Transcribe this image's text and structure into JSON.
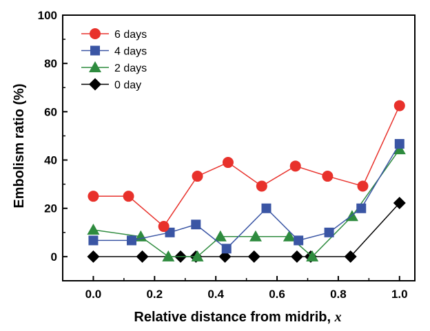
{
  "chart_data": {
    "type": "line",
    "title": "",
    "xlabel": "Relative distance from midrib, ",
    "xlabel_var": "x",
    "ylabel": "Embolism ratio (%)",
    "xlim": [
      -0.1,
      1.05
    ],
    "ylim": [
      -10,
      100
    ],
    "x_ticks": [
      0.0,
      0.2,
      0.4,
      0.6,
      0.8,
      1.0
    ],
    "x_tick_labels": [
      "0.0",
      "0.2",
      "0.4",
      "0.6",
      "0.8",
      "1.0"
    ],
    "y_ticks": [
      0,
      20,
      40,
      60,
      80,
      100
    ],
    "y_tick_labels": [
      "0",
      "20",
      "40",
      "60",
      "80",
      "100"
    ],
    "grid": false,
    "legend_position": "top-left",
    "series": [
      {
        "name": "6 days",
        "color": "#e8312b",
        "marker": "circle",
        "x": [
          0.0,
          0.115,
          0.23,
          0.34,
          0.44,
          0.55,
          0.66,
          0.765,
          0.88,
          1.0
        ],
        "y": [
          25,
          25,
          12.5,
          33.3,
          39,
          29.2,
          37.5,
          33.3,
          29.2,
          62.5
        ]
      },
      {
        "name": "4 days",
        "color": "#3a55a4",
        "marker": "square",
        "x": [
          0.0,
          0.125,
          0.25,
          0.335,
          0.435,
          0.565,
          0.67,
          0.77,
          0.875,
          1.0
        ],
        "y": [
          6.7,
          6.7,
          10,
          13.3,
          3.3,
          20,
          6.7,
          10,
          20,
          46.7
        ]
      },
      {
        "name": "2 days",
        "color": "#2e8b3e",
        "marker": "triangle",
        "x": [
          0.0,
          0.155,
          0.245,
          0.34,
          0.415,
          0.53,
          0.64,
          0.715,
          0.845,
          1.0
        ],
        "y": [
          11.1,
          8.3,
          0,
          0,
          8.3,
          8.3,
          8.3,
          0,
          16.7,
          44.4
        ]
      },
      {
        "name": "0 day",
        "color": "#000000",
        "marker": "diamond",
        "x": [
          0.0,
          0.16,
          0.285,
          0.335,
          0.43,
          0.525,
          0.665,
          0.71,
          0.84,
          1.0
        ],
        "y": [
          0,
          0,
          0,
          0,
          0,
          0,
          0,
          0,
          0,
          22.2
        ]
      }
    ]
  }
}
